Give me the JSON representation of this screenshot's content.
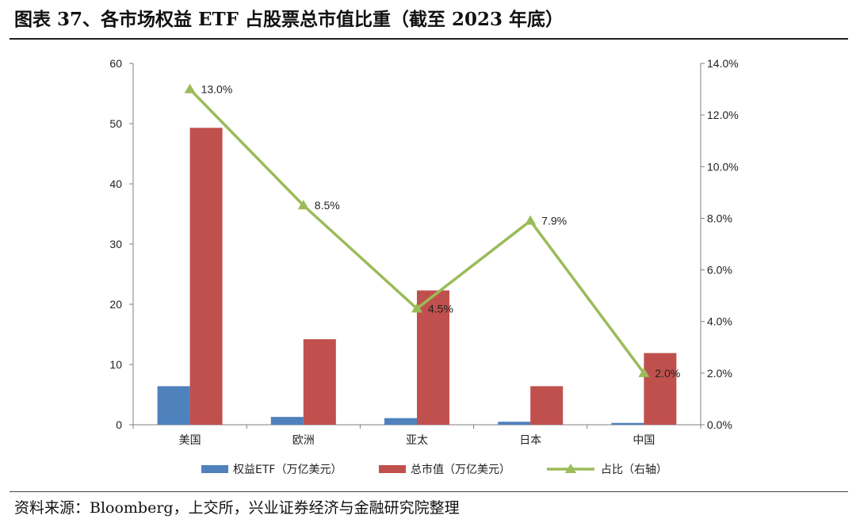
{
  "header": {
    "title": "图表 37、各市场权益 ETF 占股票总市值比重（截至 2023 年底）"
  },
  "footer": {
    "source": "资料来源：Bloomberg，上交所，兴业证券经济与金融研究院整理"
  },
  "colors": {
    "series1": "#4f81bd",
    "series2": "#c0504d",
    "series3": "#9bbb59",
    "axis": "#7f7f7f"
  },
  "chart_data": {
    "type": "bar",
    "categories": [
      "美国",
      "欧洲",
      "亚太",
      "日本",
      "中国"
    ],
    "series": [
      {
        "name": "权益ETF（万亿美元）",
        "type": "bar",
        "axis": "left",
        "values": [
          6.4,
          1.3,
          1.1,
          0.5,
          0.3
        ]
      },
      {
        "name": "总市值（万亿美元）",
        "type": "bar",
        "axis": "left",
        "values": [
          49.3,
          14.2,
          22.3,
          6.4,
          11.9
        ]
      },
      {
        "name": "占比（右轴）",
        "type": "line",
        "axis": "right",
        "values": [
          13.0,
          8.5,
          4.5,
          7.9,
          2.0
        ],
        "labels": [
          "13.0%",
          "8.5%",
          "4.5%",
          "7.9%",
          "2.0%"
        ]
      }
    ],
    "y_left": {
      "min": 0,
      "max": 60,
      "ticks": [
        "0",
        "10",
        "20",
        "30",
        "40",
        "50",
        "60"
      ]
    },
    "y_right": {
      "min": 0,
      "max": 14,
      "ticks": [
        "0.0%",
        "2.0%",
        "4.0%",
        "6.0%",
        "8.0%",
        "10.0%",
        "12.0%",
        "14.0%"
      ]
    },
    "legend_position": "bottom-center",
    "grid": false
  }
}
